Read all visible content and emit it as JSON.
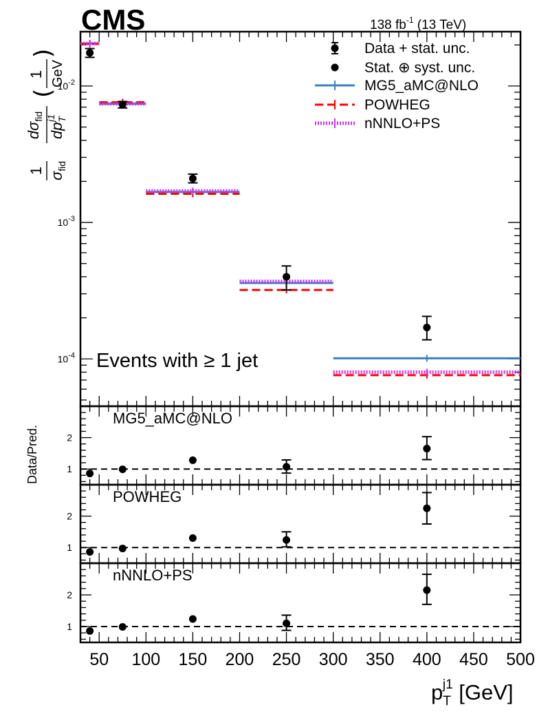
{
  "chart_data": {
    "type": "line",
    "experiment": "CMS",
    "lumi_label": "138 fb",
    "lumi_sup": "-1",
    "lumi_energy": " (13 TeV)",
    "annotation": "Events with ≥ 1 jet",
    "xlabel_base": "p",
    "xlabel_sub": "T",
    "xlabel_sup": "j1",
    "xlabel_unit": " [GeV]",
    "xlim": [
      30,
      500
    ],
    "xticks": [
      50,
      100,
      150,
      200,
      250,
      300,
      350,
      400,
      450,
      500
    ],
    "xtick_labels": [
      "50",
      "100",
      "150",
      "200",
      "250",
      "300",
      "350",
      "400",
      "450",
      "500"
    ],
    "ylabel_main": "1/σ_fid dσ_fid/dp_T^j1 (1/GeV)",
    "ylabel_parts": {
      "one": "1",
      "sigma_fid": "σ",
      "fid": "fid",
      "d": "d",
      "dp": "dp",
      "T": "T",
      "j1": "j1",
      "unit_num": "1",
      "unit_den": "GeV"
    },
    "yscale": "log",
    "ylim": [
      4.5e-05,
      0.025
    ],
    "yticks_major": [
      0.0001,
      0.001,
      0.01
    ],
    "ytick_major_labels": [
      {
        "base": "10",
        "exp": "-4"
      },
      {
        "base": "10",
        "exp": "-3"
      },
      {
        "base": "10",
        "exp": "-2"
      }
    ],
    "bins": [
      [
        30,
        50
      ],
      [
        50,
        100
      ],
      [
        100,
        200
      ],
      [
        200,
        300
      ],
      [
        300,
        500
      ]
    ],
    "data": {
      "x": [
        40,
        75,
        150,
        250,
        400
      ],
      "y": [
        0.0175,
        0.0073,
        0.0021,
        0.0004,
        0.00017
      ],
      "stat_lo": [
        0.0162,
        0.0069,
        0.00195,
        0.00034,
        0.000138
      ],
      "stat_hi": [
        0.0188,
        0.0077,
        0.00226,
        0.00047,
        0.000205
      ],
      "tot_lo": [
        0.0162,
        0.0069,
        0.00195,
        0.00032,
        0.000138
      ],
      "tot_hi": [
        0.0188,
        0.0077,
        0.00226,
        0.00048,
        0.000205
      ]
    },
    "series": [
      {
        "name": "MG5_aMC@NLO",
        "color": "#3a7fbf",
        "style": "solid",
        "values": [
          0.0205,
          0.0074,
          0.00167,
          0.00036,
          0.000101
        ]
      },
      {
        "name": "POWHEG",
        "color": "#ff0000",
        "style": "dashed",
        "values": [
          0.0203,
          0.0076,
          0.00162,
          0.00032,
          7.6e-05
        ]
      },
      {
        "name": "nNNLO+PS",
        "color": "#cc33ee",
        "style": "dotted",
        "values": [
          0.0205,
          0.0074,
          0.0017,
          0.00037,
          8e-05
        ]
      }
    ],
    "legend": {
      "position": "top-right",
      "entries": [
        "Data + stat. unc.",
        "Stat. ⊕ syst. unc.",
        "MG5_aMC@NLO",
        "POWHEG",
        "nNNLO+PS"
      ]
    },
    "ratio_panels": [
      {
        "label": "MG5_aMC@NLO",
        "values": [
          0.86,
          0.99,
          1.28,
          1.07,
          1.65
        ],
        "err_lo": [
          0.0,
          0.0,
          0.0,
          0.2,
          0.35
        ],
        "err_hi": [
          0.0,
          0.0,
          0.0,
          0.22,
          0.38
        ]
      },
      {
        "label": "POWHEG",
        "values": [
          0.86,
          0.97,
          1.3,
          1.24,
          2.25
        ],
        "err_lo": [
          0.0,
          0.0,
          0.0,
          0.22,
          0.5
        ],
        "err_hi": [
          0.0,
          0.0,
          0.0,
          0.26,
          0.5
        ]
      },
      {
        "label": "nNNLO+PS",
        "values": [
          0.86,
          0.99,
          1.24,
          1.1,
          2.15
        ],
        "err_lo": [
          0.0,
          0.0,
          0.0,
          0.22,
          0.45
        ],
        "err_hi": [
          0.0,
          0.0,
          0.0,
          0.26,
          0.5
        ]
      }
    ],
    "ratio_ylabel": "Data/Pred.",
    "ratio_ylim": [
      0.5,
      3.0
    ],
    "ratio_yticks": [
      1,
      2
    ],
    "ratio_ytick_labels": [
      "1",
      "2"
    ],
    "ratio_reference": 1
  }
}
